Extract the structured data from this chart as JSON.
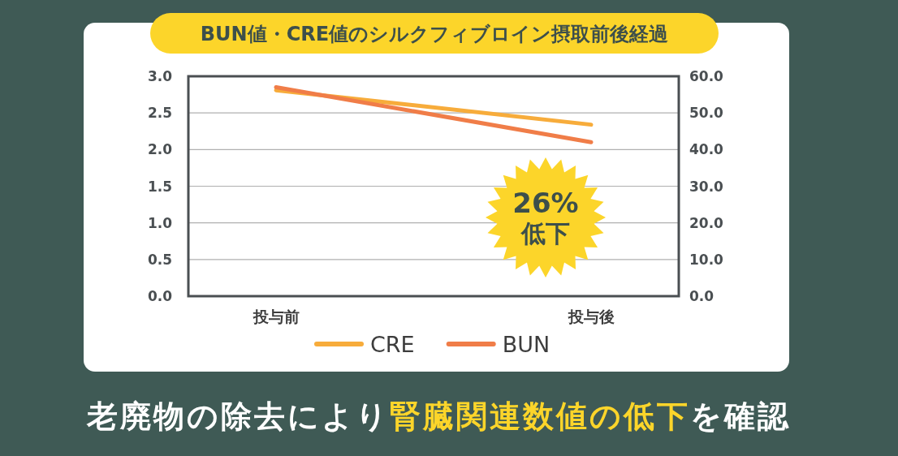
{
  "chart_data": {
    "type": "line",
    "title": "BUN値・CRE値のシルクフィブロイン摂取前後経過",
    "categories": [
      "投与前",
      "投与後"
    ],
    "series": [
      {
        "name": "CRE",
        "color": "#f7ac3b",
        "values": [
          2.81,
          2.34
        ]
      },
      {
        "name": "BUN",
        "color": "#f07d48",
        "values": [
          57.0,
          42.0
        ],
        "axis": "y2"
      }
    ],
    "ylim": [
      0,
      3
    ],
    "yticks": [
      {
        "value": 0,
        "label": "0.0"
      },
      {
        "value": 0.5,
        "label": "0.5"
      },
      {
        "value": 1,
        "label": "1.0"
      },
      {
        "value": 1.5,
        "label": "1.5"
      },
      {
        "value": 2,
        "label": "2.0"
      },
      {
        "value": 2.5,
        "label": "2.5"
      },
      {
        "value": 3,
        "label": "3.0"
      }
    ],
    "y2lim": [
      0,
      60
    ],
    "y2ticks": [
      {
        "value": 0,
        "label": "0.0"
      },
      {
        "value": 10,
        "label": "10.0"
      },
      {
        "value": 20,
        "label": "20.0"
      },
      {
        "value": 30,
        "label": "30.0"
      },
      {
        "value": 40,
        "label": "40.0"
      },
      {
        "value": 50,
        "label": "50.0"
      },
      {
        "value": 60,
        "label": "60.0"
      }
    ],
    "grid": "y",
    "legend": "bottom",
    "annotations": [
      "26%",
      "低下",
      "老廃物の除去により**腎臓関連数値の低下**を確認"
    ]
  }
}
